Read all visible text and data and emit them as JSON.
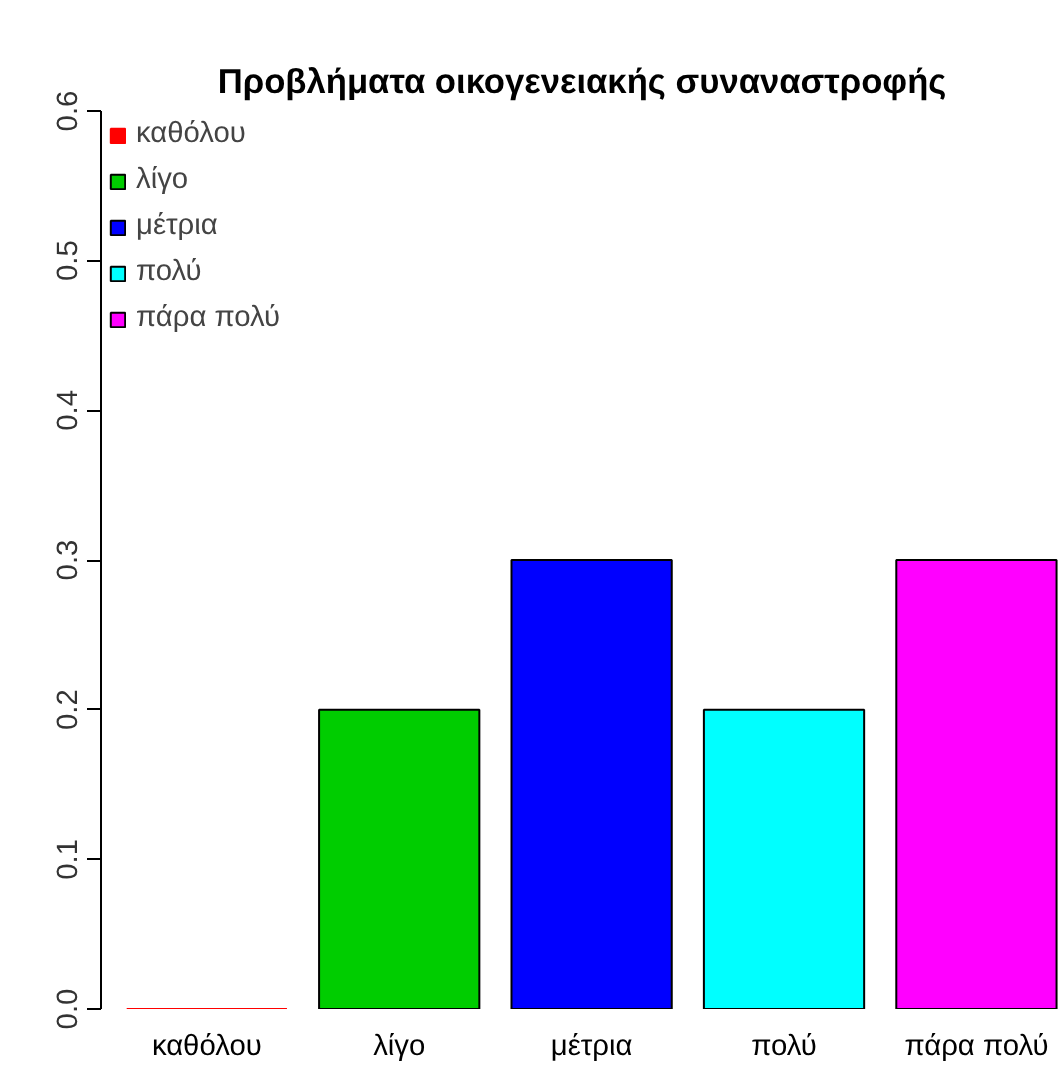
{
  "chart_data": {
    "type": "bar",
    "title": "Προβλήματα οικογενειακής συναναστροφής",
    "categories": [
      "καθόλου",
      "λίγο",
      "μέτρια",
      "πολύ",
      "πάρα πολύ"
    ],
    "series": [
      {
        "name": "καθόλου",
        "color": "#ff0000",
        "values": [
          0,
          null,
          null,
          null,
          null
        ]
      },
      {
        "name": "λίγο",
        "color": "#00cd00",
        "values": [
          null,
          0.2,
          null,
          null,
          null
        ]
      },
      {
        "name": "μέτρια",
        "color": "#0000ff",
        "values": [
          null,
          null,
          0.3,
          null,
          null
        ]
      },
      {
        "name": "πολύ",
        "color": "#00ffff",
        "values": [
          null,
          null,
          null,
          0.2,
          null
        ]
      },
      {
        "name": "πάρα πολύ",
        "color": "#ff00ff",
        "values": [
          null,
          null,
          null,
          null,
          0.3
        ]
      }
    ],
    "ylim": [
      0,
      0.6
    ],
    "yticks": [
      {
        "value": 0,
        "label": "0.0"
      },
      {
        "value": 0.1,
        "label": "0.1"
      },
      {
        "value": 0.2,
        "label": "0.2"
      },
      {
        "value": 0.3,
        "label": "0.3"
      },
      {
        "value": 0.4,
        "label": "0.4"
      },
      {
        "value": 0.5,
        "label": "0.5"
      },
      {
        "value": 0.6,
        "label": "0.6"
      }
    ],
    "grid": false,
    "legend": "top left"
  }
}
